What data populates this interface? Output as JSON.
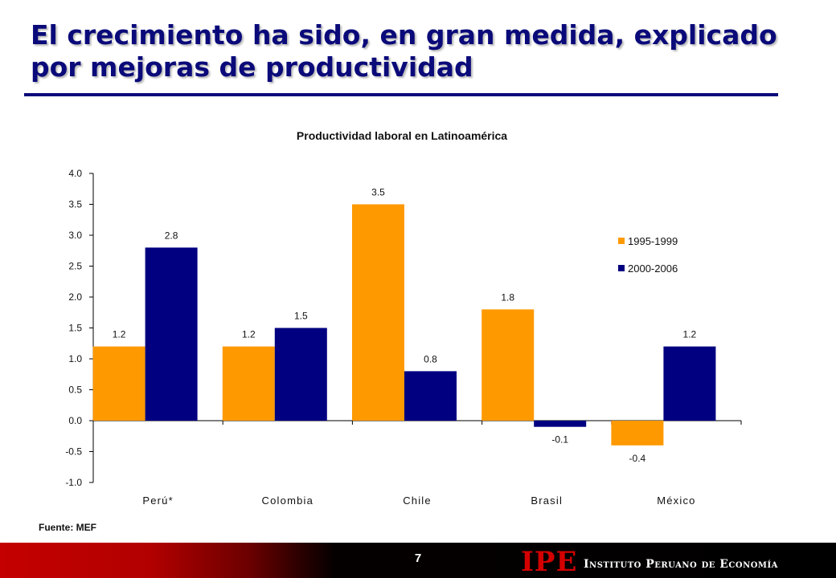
{
  "slide": {
    "title": "El crecimiento ha sido, en gran medida, explicado por mejoras de productividad",
    "source": "Fuente: MEF",
    "page_number": "7",
    "footer": {
      "logo": "IPE",
      "org_name": "Instituto Peruano de Economía"
    }
  },
  "colors": {
    "series_1": "#ff9900",
    "series_2": "#000080",
    "title": "#0a0a7a",
    "footer_red": "#c40000"
  },
  "chart_data": {
    "type": "bar",
    "title": "Productividad laboral en Latinoamérica",
    "xlabel": "",
    "ylabel": "",
    "categories": [
      "Perú*",
      "Colombia",
      "Chile",
      "Brasil",
      "México"
    ],
    "series": [
      {
        "name": "1995-1999",
        "values": [
          1.2,
          1.2,
          3.5,
          1.8,
          -0.4
        ]
      },
      {
        "name": "2000-2006",
        "values": [
          2.8,
          1.5,
          0.8,
          -0.1,
          1.2
        ]
      }
    ],
    "ylim": [
      -1.0,
      4.0
    ],
    "yticks": [
      "-1.0",
      "-0.5",
      "0.0",
      "0.5",
      "1.0",
      "1.5",
      "2.0",
      "2.5",
      "3.0",
      "3.5",
      "4.0"
    ],
    "grid": false,
    "legend": "right"
  }
}
